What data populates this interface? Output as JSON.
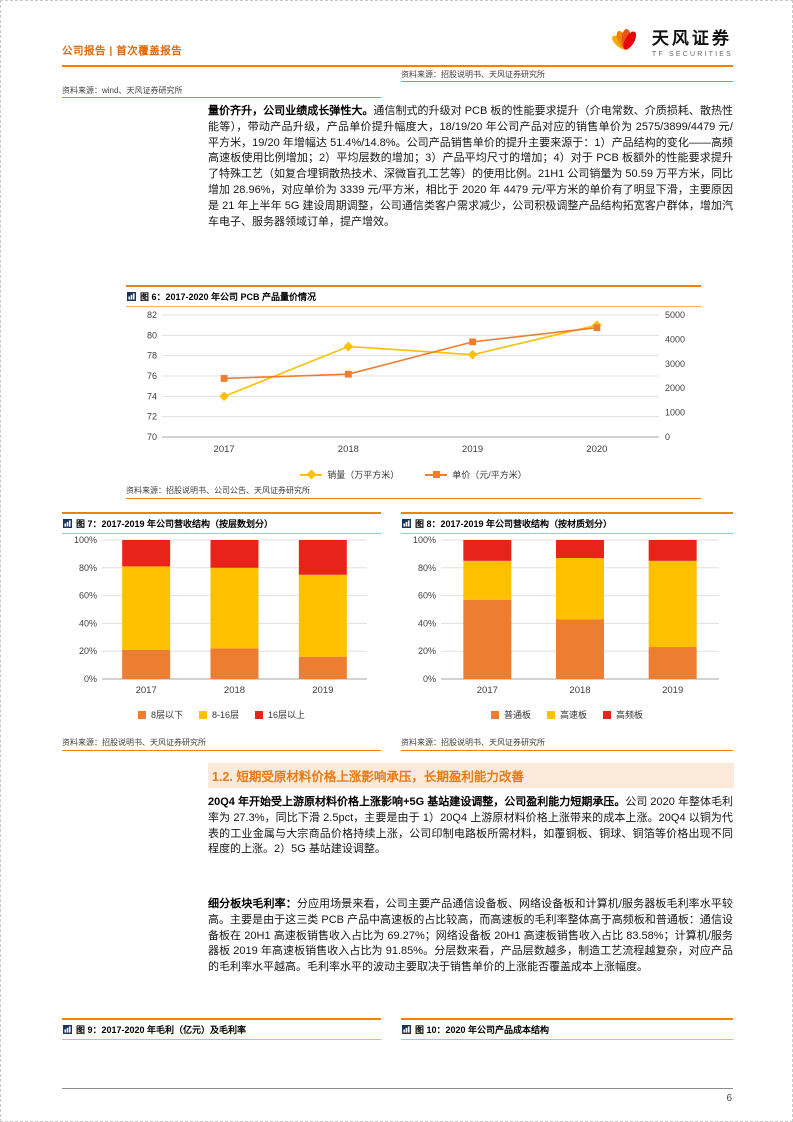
{
  "header": {
    "report_type": "公司报告 | 首次覆盖报告",
    "brand_cn": "天风证券",
    "brand_en": "TF SECURITIES"
  },
  "top_sources": {
    "left": "资料来源：wind、天风证券研究所",
    "right": "资料来源：招股说明书、天风证券研究所"
  },
  "paragraphs": {
    "p1_lead": "量价齐升，公司业绩成长弹性大。",
    "p1_body": "通信制式的升级对 PCB 板的性能要求提升（介电常数、介质损耗、散热性能等），带动产品升级，产品单价提升幅度大，18/19/20 年公司产品对应的销售单价为 2575/3899/4479 元/平方米，19/20 年增幅达 51.4%/14.8%。公司产品销售单价的提升主要来源于：1）产品结构的变化——高频高速板使用比例增加；2）平均层数的增加；3）产品平均尺寸的增加；4）对于 PCB 板额外的性能要求提升了特殊工艺（如复合埋铜散热技术、深微盲孔工艺等）的使用比例。21H1 公司销量为 50.59 万平方米，同比增加 28.96%，对应单价为 3339 元/平方米，相比于 2020 年 4479 元/平方米的单价有了明显下滑，主要原因是 21 年上半年 5G 建设周期调整，公司通信类客户需求减少，公司积极调整产品结构拓宽客户群体，增加汽车电子、服务器领域订单，提产增效。",
    "p2_lead": "20Q4 年开始受上游原材料价格上涨影响+5G 基站建设调整，公司盈利能力短期承压。",
    "p2_body": "公司 2020 年整体毛利率为 27.3%，同比下滑 2.5pct，主要是由于 1）20Q4 上游原材料价格上涨带来的成本上涨。20Q4 以铜为代表的工业金属与大宗商品价格持续上涨，公司印制电路板所需材料，如覆铜板、铜球、铜箔等价格出现不同程度的上涨。2）5G 基站建设调整。",
    "p3_lead": "细分板块毛利率：",
    "p3_body": "分应用场景来看，公司主要产品通信设备板、网络设备板和计算机/服务器板毛利率水平较高。主要是由于这三类 PCB 产品中高速板的占比较高，而高速板的毛利率整体高于高频板和普通板：通信设备板在 20H1 高速板销售收入占比为 69.27%；网络设备板 20H1 高速板销售收入占比 83.58%；计算机/服务器板 2019 年高速板销售收入占比为 91.85%。分层数来看，产品层数越多，制造工艺流程越复杂，对应产品的毛利率水平越高。毛利率水平的波动主要取决于销售单价的上涨能否覆盖成本上涨幅度。"
  },
  "section_heading": "1.2. 短期受原材料价格上涨影响承压，长期盈利能力改善",
  "figures": {
    "fig6": {
      "title": "图 6：2017-2020 年公司 PCB 产品量价情况",
      "source": "资料来源：招股说明书、公司公告、天风证券研究所"
    },
    "fig7": {
      "title": "图 7：2017-2019 年公司营收结构（按层数划分）",
      "source": "资料来源：招股说明书、天风证券研究所"
    },
    "fig8": {
      "title": "图 8：2017-2019 年公司营收结构（按材质划分）",
      "source": "资料来源：招股说明书、天风证券研究所"
    },
    "fig9": {
      "title": "图 9：2017-2020 年毛利（亿元）及毛利率"
    },
    "fig10": {
      "title": "图 10：2020 年公司产品成本结构"
    }
  },
  "chart_data": [
    {
      "id": "fig6",
      "type": "line",
      "title": "图 6：2017-2020 年公司 PCB 产品量价情况",
      "categories": [
        "2017",
        "2018",
        "2019",
        "2020"
      ],
      "left_axis": {
        "min": 70,
        "max": 82,
        "step": 2
      },
      "right_axis": {
        "min": 0,
        "max": 5000,
        "step": 1000
      },
      "series": [
        {
          "name": "销量（万平方米）",
          "axis": "left",
          "marker": "diamond",
          "color": "#FFC000",
          "values": [
            74.0,
            78.9,
            78.1,
            81.0
          ]
        },
        {
          "name": "单价（元/平方米）",
          "axis": "right",
          "marker": "square",
          "color": "#ED7D31",
          "values": [
            2400,
            2575,
            3899,
            4479
          ]
        }
      ],
      "legend_position": "bottom",
      "grid": true
    },
    {
      "id": "fig7",
      "type": "stacked-bar-100",
      "title": "图 7：2017-2019 年公司营收结构（按层数划分）",
      "categories": [
        "2017",
        "2018",
        "2019"
      ],
      "y_ticks": [
        "0%",
        "20%",
        "40%",
        "60%",
        "80%",
        "100%"
      ],
      "ylim": [
        0,
        100
      ],
      "series": [
        {
          "name": "8层以下",
          "color": "#ED7D31",
          "values": [
            21,
            22,
            16
          ]
        },
        {
          "name": "8-16层",
          "color": "#FFC000",
          "values": [
            60,
            58,
            59
          ]
        },
        {
          "name": "16层以上",
          "color": "#E8231A",
          "values": [
            19,
            20,
            25
          ]
        }
      ],
      "legend_position": "bottom",
      "grid": true
    },
    {
      "id": "fig8",
      "type": "stacked-bar-100",
      "title": "图 8：2017-2019 年公司营收结构（按材质划分）",
      "categories": [
        "2017",
        "2018",
        "2019"
      ],
      "y_ticks": [
        "0%",
        "20%",
        "40%",
        "60%",
        "80%",
        "100%"
      ],
      "ylim": [
        0,
        100
      ],
      "series": [
        {
          "name": "普通板",
          "color": "#ED7D31",
          "values": [
            57,
            43,
            23
          ]
        },
        {
          "name": "高速板",
          "color": "#FFC000",
          "values": [
            28,
            44,
            62
          ]
        },
        {
          "name": "高频板",
          "color": "#E8231A",
          "values": [
            15,
            13,
            15
          ]
        }
      ],
      "legend_position": "bottom",
      "grid": true
    }
  ],
  "footer": {
    "page_number": "6"
  },
  "colors": {
    "accent_orange": "#F08300",
    "heading_orange": "#E87B16",
    "series_gold": "#FFC000",
    "series_orange": "#ED7D31",
    "series_red": "#E8231A"
  }
}
